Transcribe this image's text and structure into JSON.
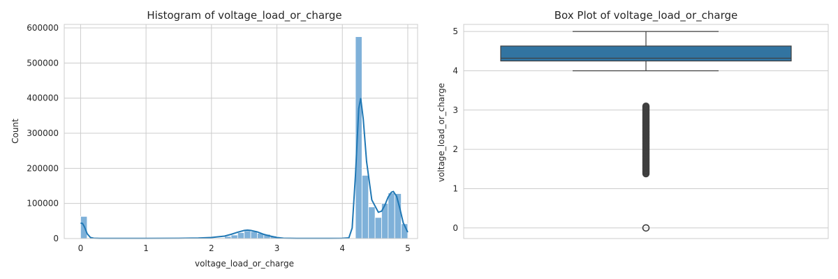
{
  "chart_data": [
    {
      "type": "bar",
      "title": "Histogram of voltage_load_or_charge",
      "xlabel": "voltage_load_or_charge",
      "ylabel": "Count",
      "xlim": [
        -0.25,
        5.15
      ],
      "ylim": [
        0,
        610000
      ],
      "xticks": [
        0,
        1,
        2,
        3,
        4,
        5
      ],
      "xtick_labels": [
        "0",
        "1",
        "2",
        "3",
        "4",
        "5"
      ],
      "yticks": [
        0,
        100000,
        200000,
        300000,
        400000,
        500000,
        600000
      ],
      "ytick_labels": [
        "0",
        "100000",
        "200000",
        "300000",
        "400000",
        "500000",
        "600000"
      ],
      "grid": true,
      "bar_color": "#7fb1d9",
      "kde_color": "#1f77b4",
      "bins": {
        "x": [
          0.0,
          0.1,
          0.2,
          0.3,
          0.4,
          0.5,
          0.6,
          0.7,
          0.8,
          0.9,
          1.0,
          1.1,
          1.2,
          1.3,
          1.4,
          1.5,
          1.6,
          1.7,
          1.8,
          1.9,
          2.0,
          2.1,
          2.2,
          2.3,
          2.4,
          2.5,
          2.6,
          2.7,
          2.8,
          2.9,
          3.0,
          3.1,
          3.2,
          3.3,
          3.4,
          3.5,
          3.6,
          3.7,
          3.8,
          3.9,
          4.0,
          4.1,
          4.2,
          4.3,
          4.4,
          4.5,
          4.6,
          4.7,
          4.8,
          4.9
        ],
        "counts": [
          63000,
          0,
          0,
          0,
          0,
          0,
          0,
          0,
          0,
          0,
          0,
          0,
          0,
          0,
          0,
          0,
          0,
          0,
          0,
          0,
          1000,
          2000,
          6000,
          10000,
          17000,
          22000,
          20000,
          15000,
          12000,
          7000,
          2000,
          0,
          0,
          0,
          0,
          0,
          0,
          0,
          0,
          0,
          0,
          0,
          575000,
          180000,
          90000,
          60000,
          100000,
          130000,
          128000,
          42000
        ],
        "width": 0.1
      },
      "kde": {
        "x": [
          0,
          0.03,
          0.06,
          0.1,
          0.15,
          0.2,
          0.3,
          0.5,
          1.0,
          1.5,
          1.8,
          2.0,
          2.2,
          2.3,
          2.4,
          2.5,
          2.55,
          2.6,
          2.7,
          2.8,
          2.9,
          3.0,
          3.1,
          3.3,
          3.5,
          3.8,
          4.0,
          4.1,
          4.15,
          4.2,
          4.25,
          4.28,
          4.32,
          4.37,
          4.45,
          4.55,
          4.6,
          4.65,
          4.7,
          4.75,
          4.78,
          4.83,
          4.88,
          4.93,
          5.0
        ],
        "y": [
          44000,
          43000,
          33000,
          14000,
          3000,
          1000,
          500,
          500,
          500,
          800,
          1500,
          3000,
          7000,
          12000,
          18000,
          23000,
          24000,
          23000,
          19000,
          12000,
          7000,
          3000,
          1000,
          500,
          500,
          500,
          800,
          2000,
          30000,
          180000,
          370000,
          400000,
          340000,
          220000,
          110000,
          75000,
          78000,
          95000,
          118000,
          132000,
          134000,
          120000,
          85000,
          45000,
          18000
        ]
      }
    },
    {
      "type": "box",
      "title": "Box Plot of voltage_load_or_charge",
      "ylabel": "voltage_load_or_charge",
      "ylim": [
        -0.27,
        5.18
      ],
      "yticks": [
        0,
        1,
        2,
        3,
        4,
        5
      ],
      "ytick_labels": [
        "0",
        "1",
        "2",
        "3",
        "4",
        "5"
      ],
      "grid": true,
      "box_color": "#3274a1",
      "whisker_low": 4.0,
      "q1": 4.25,
      "median": 4.32,
      "q3": 4.63,
      "whisker_high": 5.0,
      "outliers": [
        0.0
      ],
      "outlier_range": [
        1.38,
        3.1
      ]
    }
  ]
}
